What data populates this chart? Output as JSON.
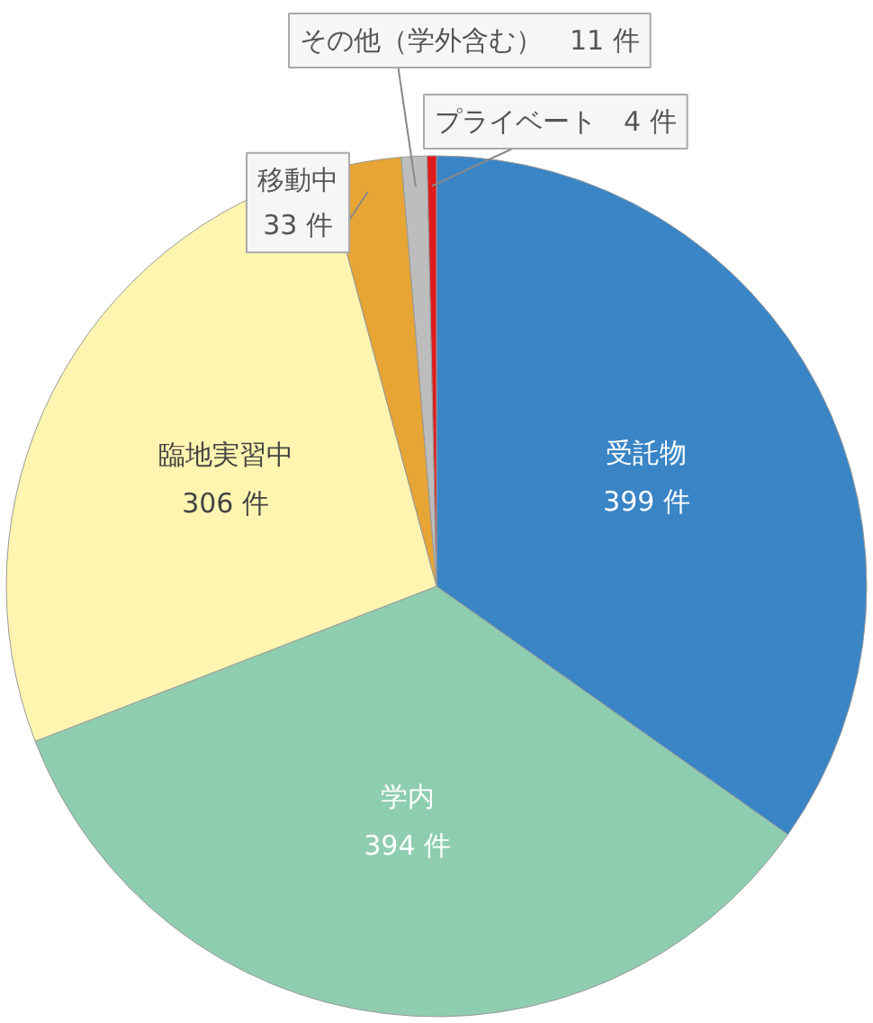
{
  "chart_data": {
    "type": "pie",
    "categories": [
      "受託物",
      "学内",
      "臨地実習中",
      "移動中",
      "その他（学外含む）",
      "プライベート"
    ],
    "values": [
      399,
      394,
      306,
      33,
      11,
      4
    ],
    "value_labels": [
      "399 件",
      "394 件",
      "306 件",
      "33 件",
      "11 件",
      "4 件"
    ],
    "colors": [
      "#3a85c6",
      "#8fcdb0",
      "#fff5b0",
      "#e6a535",
      "#bdbdbd",
      "#e01b1b"
    ]
  }
}
